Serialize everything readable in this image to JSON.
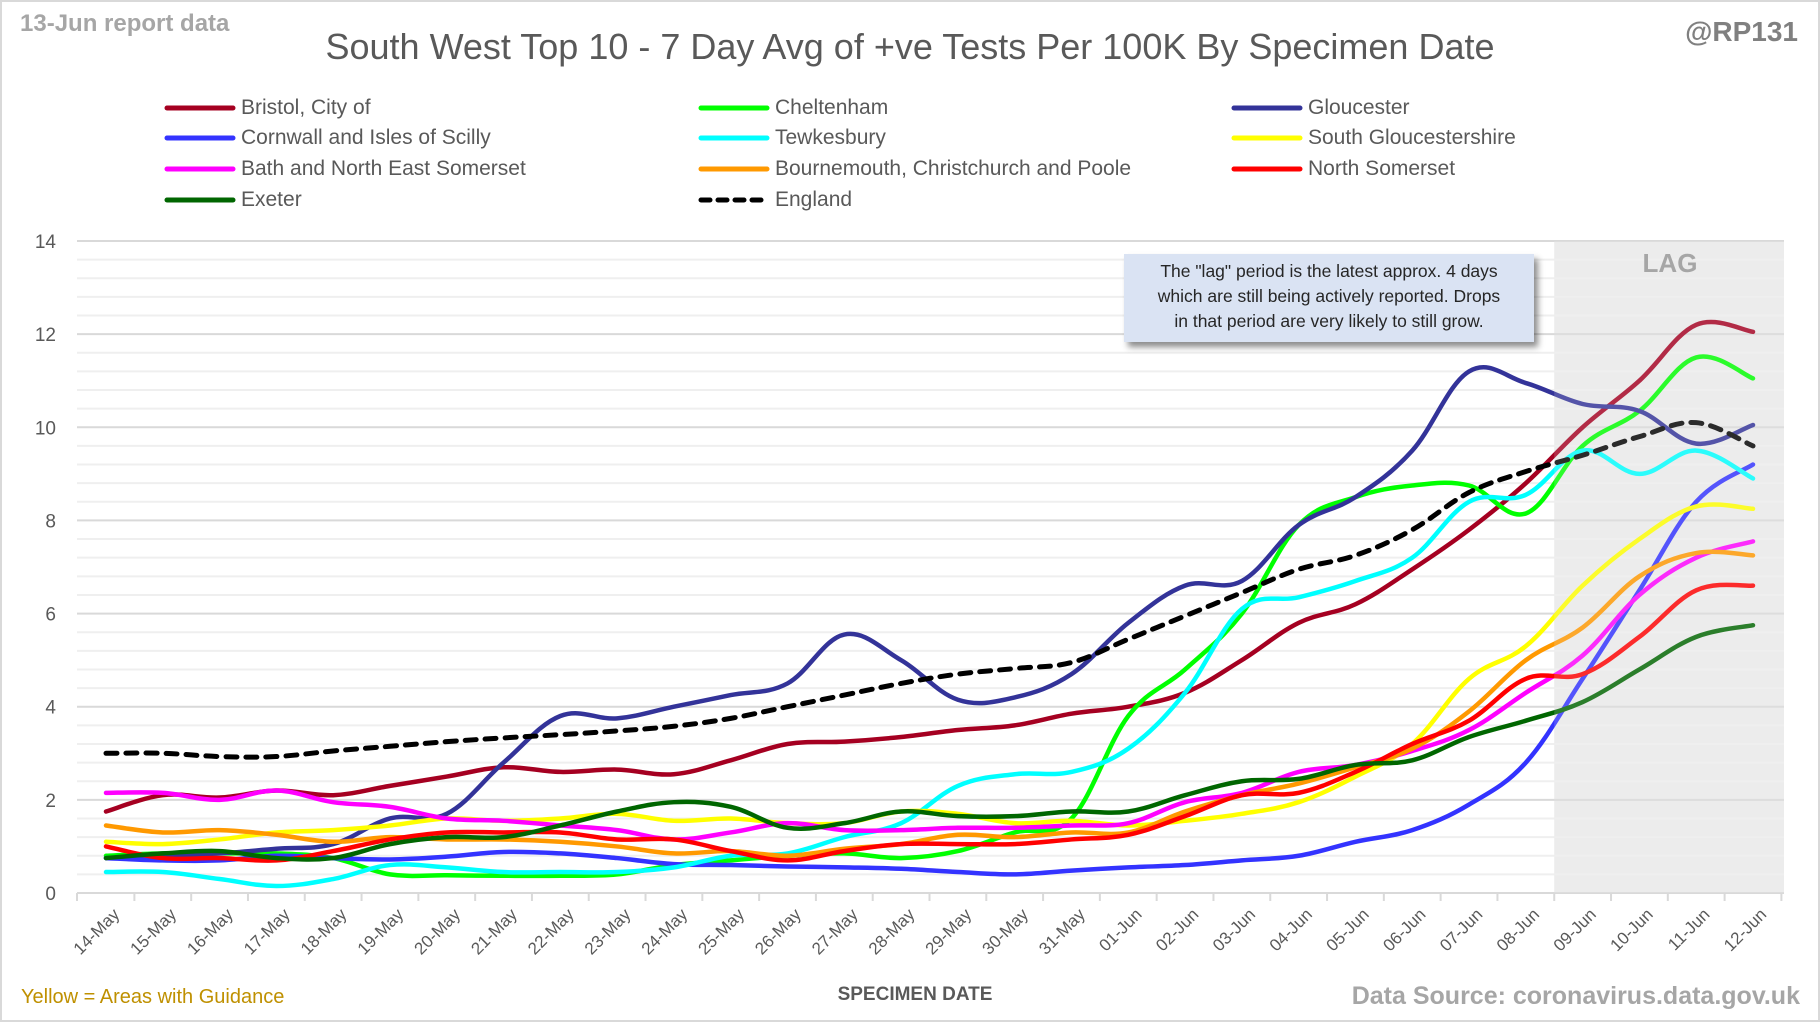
{
  "header": {
    "report_date": "13-Jun report data",
    "handle": "@RP131"
  },
  "annotation": {
    "lines": [
      "The \"lag\" period is the latest approx. 4 days",
      "which are still being actively reported.  Drops",
      "in that period are very likely to still grow."
    ]
  },
  "lag_label": "LAG",
  "footer": {
    "guidance_note": "Yellow = Areas with Guidance",
    "data_source": "Data Source: coronavirus.data.gov.uk"
  },
  "chart_data": {
    "type": "line",
    "title": "South West Top 10 - 7 Day Avg of +ve Tests Per 100K By Specimen Date",
    "xlabel": "SPECIMEN DATE",
    "ylabel": "",
    "ylim": [
      0,
      14
    ],
    "yticks": [
      0,
      2,
      4,
      6,
      8,
      10,
      12,
      14
    ],
    "minor_grid_step": 0.4,
    "grid": true,
    "legend_position": "top",
    "lag_period": {
      "from": "09-Jun",
      "to": "12-Jun",
      "label": "LAG"
    },
    "x": [
      "14-May",
      "15-May",
      "16-May",
      "17-May",
      "18-May",
      "19-May",
      "20-May",
      "21-May",
      "22-May",
      "23-May",
      "24-May",
      "25-May",
      "26-May",
      "27-May",
      "28-May",
      "29-May",
      "30-May",
      "31-May",
      "01-Jun",
      "02-Jun",
      "03-Jun",
      "04-Jun",
      "05-Jun",
      "06-Jun",
      "07-Jun",
      "08-Jun",
      "09-Jun",
      "10-Jun",
      "11-Jun",
      "12-Jun"
    ],
    "series": [
      {
        "name": "Bristol, City of",
        "color": "#a50021",
        "dashed": false,
        "values": [
          1.75,
          2.1,
          2.05,
          2.2,
          2.1,
          2.3,
          2.5,
          2.7,
          2.6,
          2.65,
          2.55,
          2.85,
          3.2,
          3.25,
          3.35,
          3.5,
          3.6,
          3.85,
          4.0,
          4.3,
          5.0,
          5.8,
          6.2,
          6.95,
          7.8,
          8.8,
          10.0,
          11.0,
          12.2,
          12.05
        ]
      },
      {
        "name": "Cheltenham",
        "color": "#00ff00",
        "dashed": false,
        "values": [
          0.8,
          0.85,
          0.85,
          0.85,
          0.75,
          0.4,
          0.38,
          0.37,
          0.37,
          0.4,
          0.6,
          0.7,
          0.8,
          0.85,
          0.75,
          0.9,
          1.3,
          1.6,
          3.8,
          4.8,
          6.0,
          7.9,
          8.5,
          8.75,
          8.75,
          8.15,
          9.6,
          10.35,
          11.5,
          11.05
        ]
      },
      {
        "name": "Gloucester",
        "color": "#333399",
        "dashed": false,
        "values": [
          0.75,
          0.8,
          0.85,
          0.95,
          1.05,
          1.6,
          1.7,
          2.8,
          3.8,
          3.75,
          4.0,
          4.25,
          4.5,
          5.55,
          5.0,
          4.15,
          4.2,
          4.7,
          5.8,
          6.6,
          6.7,
          7.9,
          8.5,
          9.5,
          11.2,
          10.95,
          10.5,
          10.35,
          9.65,
          10.05
        ]
      },
      {
        "name": "Cornwall and Isles of Scilly",
        "color": "#3333ff",
        "dashed": false,
        "values": [
          0.75,
          0.7,
          0.7,
          0.8,
          0.75,
          0.72,
          0.78,
          0.88,
          0.85,
          0.75,
          0.62,
          0.6,
          0.57,
          0.55,
          0.52,
          0.45,
          0.4,
          0.48,
          0.55,
          0.6,
          0.7,
          0.8,
          1.1,
          1.35,
          1.9,
          2.8,
          4.6,
          6.5,
          8.4,
          9.2
        ]
      },
      {
        "name": "Tewkesbury",
        "color": "#00ffff",
        "dashed": false,
        "values": [
          0.45,
          0.45,
          0.3,
          0.15,
          0.3,
          0.6,
          0.55,
          0.45,
          0.45,
          0.45,
          0.55,
          0.8,
          0.85,
          1.2,
          1.5,
          2.3,
          2.55,
          2.6,
          3.1,
          4.3,
          6.1,
          6.35,
          6.7,
          7.2,
          8.4,
          8.55,
          9.5,
          9.0,
          9.5,
          8.9
        ]
      },
      {
        "name": "South Gloucestershire",
        "color": "#ffff00",
        "dashed": false,
        "values": [
          1.1,
          1.05,
          1.15,
          1.3,
          1.35,
          1.45,
          1.6,
          1.55,
          1.6,
          1.7,
          1.55,
          1.6,
          1.5,
          1.5,
          1.75,
          1.7,
          1.5,
          1.55,
          1.45,
          1.55,
          1.7,
          1.95,
          2.5,
          3.2,
          4.6,
          5.3,
          6.6,
          7.6,
          8.3,
          8.25
        ]
      },
      {
        "name": "Bath and North East Somerset",
        "color": "#ff00ff",
        "dashed": false,
        "values": [
          2.15,
          2.15,
          2.0,
          2.2,
          1.95,
          1.85,
          1.6,
          1.55,
          1.45,
          1.35,
          1.15,
          1.3,
          1.5,
          1.35,
          1.35,
          1.4,
          1.4,
          1.45,
          1.5,
          1.95,
          2.15,
          2.6,
          2.75,
          3.05,
          3.5,
          4.3,
          5.1,
          6.4,
          7.2,
          7.55
        ]
      },
      {
        "name": "Bournemouth, Christchurch and Poole",
        "color": "#ff9900",
        "dashed": false,
        "values": [
          1.45,
          1.3,
          1.35,
          1.25,
          1.1,
          1.2,
          1.15,
          1.15,
          1.1,
          1.0,
          0.85,
          0.9,
          0.8,
          0.95,
          1.05,
          1.25,
          1.2,
          1.3,
          1.3,
          1.75,
          2.1,
          2.35,
          2.7,
          3.1,
          3.9,
          5.0,
          5.7,
          6.8,
          7.3,
          7.25
        ]
      },
      {
        "name": "North Somerset",
        "color": "#ff0000",
        "dashed": false,
        "values": [
          1.0,
          0.75,
          0.75,
          0.7,
          0.9,
          1.15,
          1.3,
          1.3,
          1.3,
          1.15,
          1.15,
          0.9,
          0.7,
          0.9,
          1.05,
          1.05,
          1.05,
          1.15,
          1.25,
          1.65,
          2.1,
          2.15,
          2.6,
          3.2,
          3.7,
          4.6,
          4.7,
          5.5,
          6.5,
          6.6
        ]
      },
      {
        "name": "Exeter",
        "color": "#006600",
        "dashed": false,
        "values": [
          0.75,
          0.85,
          0.9,
          0.75,
          0.75,
          1.05,
          1.2,
          1.2,
          1.45,
          1.75,
          1.95,
          1.85,
          1.4,
          1.5,
          1.75,
          1.65,
          1.65,
          1.75,
          1.75,
          2.1,
          2.4,
          2.45,
          2.75,
          2.85,
          3.35,
          3.7,
          4.1,
          4.8,
          5.5,
          5.75
        ]
      },
      {
        "name": "England",
        "color": "#000000",
        "dashed": true,
        "values": [
          3.0,
          3.0,
          2.93,
          2.93,
          3.05,
          3.15,
          3.25,
          3.33,
          3.4,
          3.48,
          3.58,
          3.75,
          4.0,
          4.25,
          4.5,
          4.7,
          4.82,
          4.95,
          5.45,
          5.95,
          6.45,
          6.95,
          7.25,
          7.8,
          8.6,
          9.05,
          9.4,
          9.8,
          10.1,
          9.6
        ]
      }
    ],
    "legend_order": [
      "Bristol, City of",
      "Cheltenham",
      "Gloucester",
      "Cornwall and Isles of Scilly",
      "Tewkesbury",
      "South Gloucestershire",
      "Bath and North East Somerset",
      "Bournemouth, Christchurch and Poole",
      "North Somerset",
      "Exeter",
      "England"
    ]
  }
}
